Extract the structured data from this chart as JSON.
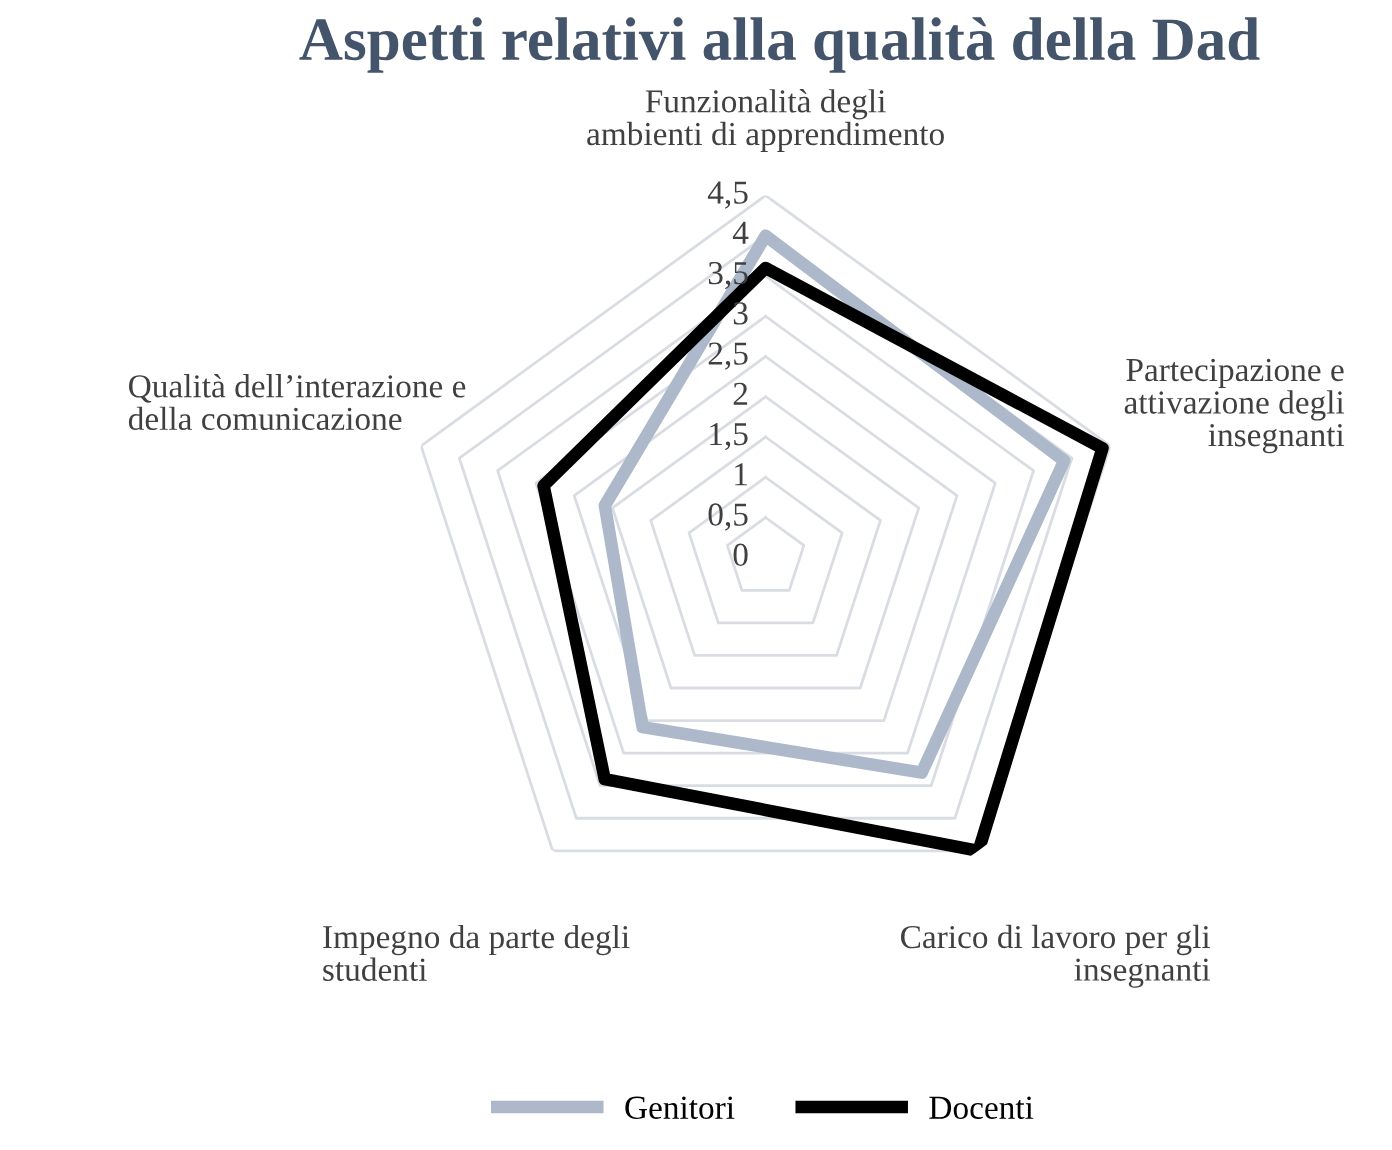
{
  "chart_data": {
    "type": "radar",
    "title": "Aspetti relativi alla qualità della Dad",
    "categories": [
      "Funzionalità degli\nambienti di apprendimento",
      "Partecipazione e\nattivazione degli\ninsegnanti",
      "Carico di lavoro per gli\ninsegnanti",
      "Impegno da parte degli\nstudenti",
      "Qualità dell’interazione e\ndella comunicazione"
    ],
    "series": [
      {
        "name": "Genitori",
        "color": "#adb9ca",
        "values": [
          4.0,
          3.9,
          3.3,
          2.6,
          2.1
        ]
      },
      {
        "name": "Docenti",
        "color": "#000000",
        "values": [
          3.6,
          4.4,
          4.5,
          3.4,
          2.9
        ]
      }
    ],
    "ylim": [
      0,
      4.5
    ],
    "yticks": [
      {
        "value": 0,
        "label": "0"
      },
      {
        "value": 0.5,
        "label": "0,5"
      },
      {
        "value": 1,
        "label": "1"
      },
      {
        "value": 1.5,
        "label": "1,5"
      },
      {
        "value": 2,
        "label": "2"
      },
      {
        "value": 2.5,
        "label": "2,5"
      },
      {
        "value": 3,
        "label": "3"
      },
      {
        "value": 3.5,
        "label": "3,5"
      },
      {
        "value": 4,
        "label": "4"
      },
      {
        "value": 4.5,
        "label": "4,5"
      }
    ],
    "grid": true,
    "legend": "bottom",
    "marker": "none",
    "line_style": "solid"
  }
}
